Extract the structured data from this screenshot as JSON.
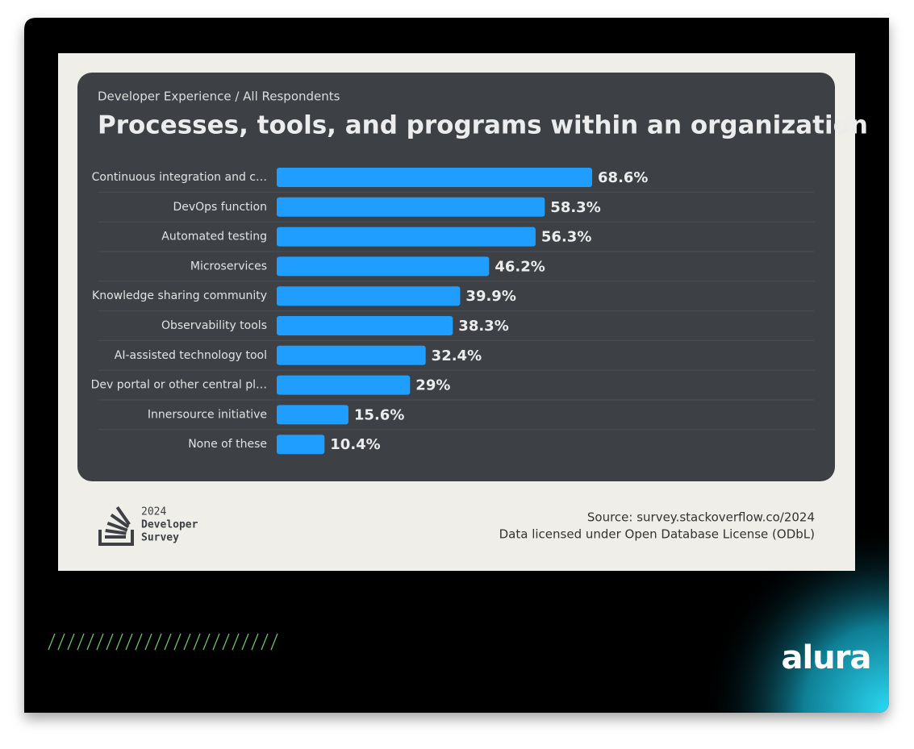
{
  "chart_data": {
    "type": "bar",
    "orientation": "horizontal",
    "subtitle": "Developer Experience / All Respondents",
    "title": "Processes, tools, and programs within an organization",
    "categories": [
      "Continuous integration and c…",
      "DevOps function",
      "Automated testing",
      "Microservices",
      "Knowledge sharing community",
      "Observability tools",
      "AI-assisted technology tool",
      "Dev portal or other central pl…",
      "Innersource initiative",
      "None of these"
    ],
    "values": [
      68.6,
      58.3,
      56.3,
      46.2,
      39.9,
      38.3,
      32.4,
      29,
      15.6,
      10.4
    ],
    "value_labels": [
      "68.6%",
      "58.3%",
      "56.3%",
      "46.2%",
      "39.9%",
      "38.3%",
      "32.4%",
      "29%",
      "15.6%",
      "10.4%"
    ],
    "color": "#1f9eff"
  },
  "footer": {
    "logo_lines": [
      "2024",
      "Developer",
      "Survey"
    ],
    "source": "Source: survey.stackoverflow.co/2024",
    "license": "Data licensed under Open Database License (ODbL)"
  },
  "brand": "alura"
}
